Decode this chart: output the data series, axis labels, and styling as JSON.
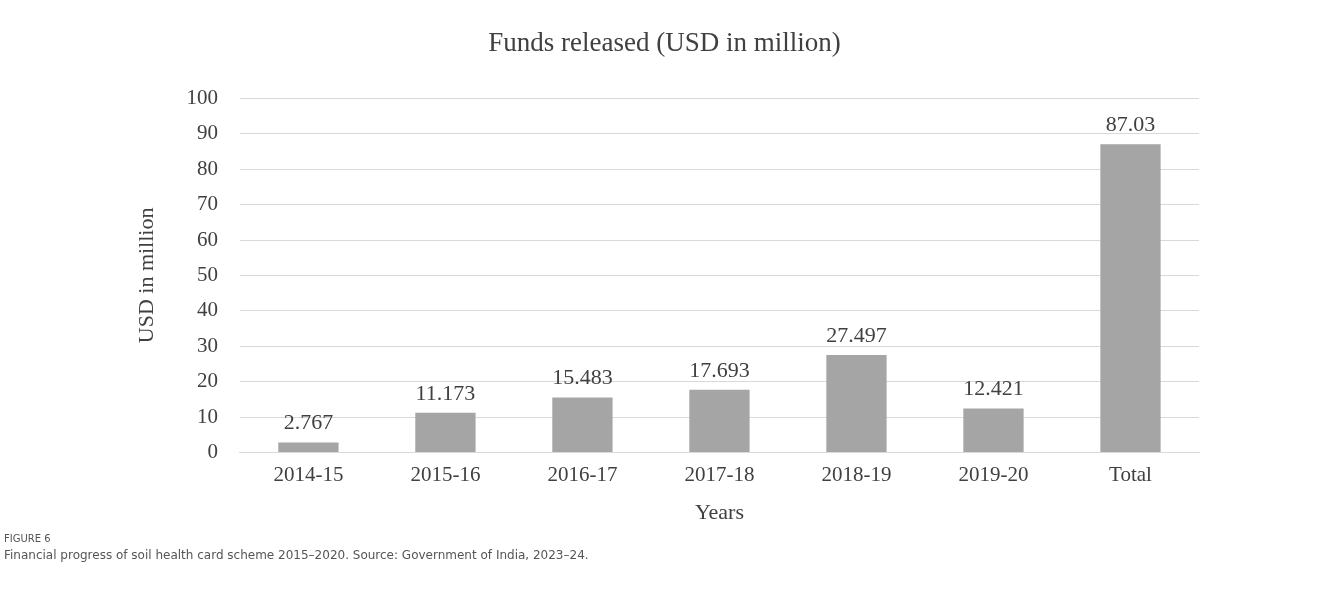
{
  "chart_data": {
    "type": "bar",
    "title": "Funds released (USD in million)",
    "xlabel": "Years",
    "ylabel": "USD in million",
    "categories": [
      "2014-15",
      "2015-16",
      "2016-17",
      "2017-18",
      "2018-19",
      "2019-20",
      "Total"
    ],
    "values": [
      2.767,
      11.173,
      15.483,
      17.693,
      27.497,
      12.421,
      87.03
    ],
    "color": "#a5a5a5",
    "ylim": [
      0,
      100
    ],
    "yticks": [
      0,
      10,
      20,
      30,
      40,
      50,
      60,
      70,
      80,
      90,
      100
    ],
    "grid": "y",
    "data_labels": true,
    "legend": false,
    "annotations": [
      "FIGURE 6",
      "Financial progress of soil health card scheme 2015–2020. Source: Government of India, 2023–24."
    ]
  }
}
